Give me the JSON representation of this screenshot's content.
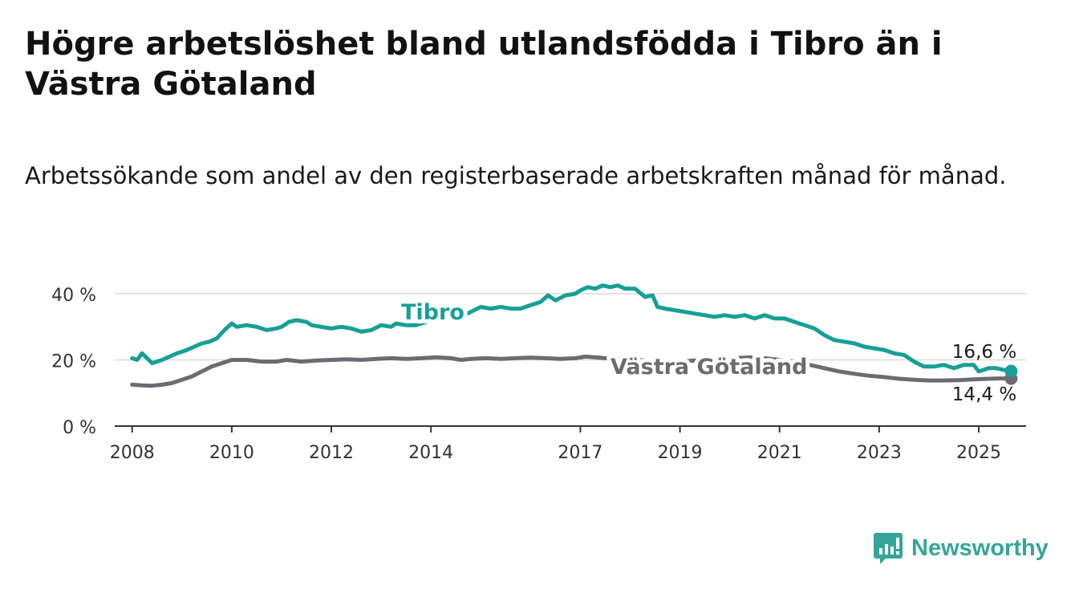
{
  "header": {
    "title": "Högre arbetslöshet bland utlandsfödda i Tibro än i Västra Götaland",
    "subtitle": "Arbetssökande som andel av den registerbaserade arbetskraften månad för månad."
  },
  "brand": {
    "name": "Newsworthy",
    "icon": "bar-chart-logo-icon",
    "color": "#35a59b"
  },
  "chart_data": {
    "type": "line",
    "title": "Högre arbetslöshet bland utlandsfödda i Tibro än i Västra Götaland",
    "subtitle": "Arbetssökande som andel av den registerbaserade arbetskraften månad för månad.",
    "xlabel": "",
    "ylabel": "",
    "xlim": [
      2007.65,
      2025.95
    ],
    "ylim": [
      0,
      40
    ],
    "grid": true,
    "legend": "inline labels",
    "x_ticks": [
      2008,
      2010,
      2012,
      2014,
      2017,
      2019,
      2021,
      2023,
      2025
    ],
    "x_tick_labels": [
      "2008",
      "2010",
      "2012",
      "2014",
      "2017",
      "2019",
      "2021",
      "2023",
      "2025"
    ],
    "y_ticks": [
      0,
      20,
      40
    ],
    "y_tick_labels": [
      "0 %",
      "20 %",
      "40 %"
    ],
    "series": [
      {
        "name": "Tibro",
        "color": "#17a095",
        "end_label": "16,6 %",
        "points": [
          [
            2008.0,
            20.5
          ],
          [
            2008.1,
            20.0
          ],
          [
            2008.2,
            22.0
          ],
          [
            2008.3,
            20.5
          ],
          [
            2008.4,
            19.0
          ],
          [
            2008.5,
            19.5
          ],
          [
            2008.6,
            20.0
          ],
          [
            2008.75,
            21.0
          ],
          [
            2008.9,
            22.0
          ],
          [
            2009.0,
            22.5
          ],
          [
            2009.1,
            23.0
          ],
          [
            2009.25,
            24.0
          ],
          [
            2009.4,
            25.0
          ],
          [
            2009.55,
            25.5
          ],
          [
            2009.7,
            26.5
          ],
          [
            2009.85,
            29.0
          ],
          [
            2010.0,
            31.0
          ],
          [
            2010.1,
            30.0
          ],
          [
            2010.3,
            30.5
          ],
          [
            2010.5,
            30.0
          ],
          [
            2010.7,
            29.0
          ],
          [
            2010.9,
            29.5
          ],
          [
            2011.0,
            30.0
          ],
          [
            2011.15,
            31.5
          ],
          [
            2011.3,
            32.0
          ],
          [
            2011.5,
            31.5
          ],
          [
            2011.6,
            30.5
          ],
          [
            2011.8,
            30.0
          ],
          [
            2012.0,
            29.5
          ],
          [
            2012.2,
            30.0
          ],
          [
            2012.4,
            29.5
          ],
          [
            2012.5,
            29.0
          ],
          [
            2012.6,
            28.5
          ],
          [
            2012.8,
            29.0
          ],
          [
            2013.0,
            30.5
          ],
          [
            2013.2,
            30.0
          ],
          [
            2013.3,
            31.0
          ],
          [
            2013.5,
            30.5
          ],
          [
            2013.7,
            30.5
          ],
          [
            2013.9,
            31.5
          ],
          [
            2014.0,
            32.0
          ],
          [
            2014.2,
            33.0
          ],
          [
            2014.4,
            33.5
          ],
          [
            2014.6,
            33.0
          ],
          [
            2014.8,
            34.5
          ],
          [
            2015.0,
            36.0
          ],
          [
            2015.2,
            35.5
          ],
          [
            2015.4,
            36.0
          ],
          [
            2015.6,
            35.5
          ],
          [
            2015.8,
            35.5
          ],
          [
            2016.0,
            36.5
          ],
          [
            2016.2,
            37.5
          ],
          [
            2016.35,
            39.5
          ],
          [
            2016.5,
            38.0
          ],
          [
            2016.7,
            39.5
          ],
          [
            2016.9,
            40.0
          ],
          [
            2017.0,
            41.0
          ],
          [
            2017.15,
            42.0
          ],
          [
            2017.3,
            41.5
          ],
          [
            2017.45,
            42.5
          ],
          [
            2017.6,
            42.0
          ],
          [
            2017.75,
            42.5
          ],
          [
            2017.9,
            41.5
          ],
          [
            2018.1,
            41.5
          ],
          [
            2018.3,
            39.0
          ],
          [
            2018.45,
            39.5
          ],
          [
            2018.55,
            36.0
          ],
          [
            2018.7,
            35.5
          ],
          [
            2018.9,
            35.0
          ],
          [
            2019.1,
            34.5
          ],
          [
            2019.3,
            34.0
          ],
          [
            2019.5,
            33.5
          ],
          [
            2019.7,
            33.0
          ],
          [
            2019.9,
            33.5
          ],
          [
            2020.1,
            33.0
          ],
          [
            2020.3,
            33.5
          ],
          [
            2020.5,
            32.5
          ],
          [
            2020.7,
            33.5
          ],
          [
            2020.9,
            32.5
          ],
          [
            2021.1,
            32.5
          ],
          [
            2021.3,
            31.5
          ],
          [
            2021.5,
            30.5
          ],
          [
            2021.7,
            29.5
          ],
          [
            2021.9,
            27.5
          ],
          [
            2022.1,
            26.0
          ],
          [
            2022.3,
            25.5
          ],
          [
            2022.5,
            25.0
          ],
          [
            2022.7,
            24.0
          ],
          [
            2022.9,
            23.5
          ],
          [
            2023.1,
            23.0
          ],
          [
            2023.3,
            22.0
          ],
          [
            2023.5,
            21.5
          ],
          [
            2023.7,
            19.5
          ],
          [
            2023.9,
            18.0
          ],
          [
            2024.1,
            18.0
          ],
          [
            2024.3,
            18.5
          ],
          [
            2024.5,
            17.5
          ],
          [
            2024.7,
            18.5
          ],
          [
            2024.9,
            18.5
          ],
          [
            2025.0,
            16.5
          ],
          [
            2025.1,
            17.0
          ],
          [
            2025.2,
            17.5
          ],
          [
            2025.35,
            17.5
          ],
          [
            2025.5,
            17.0
          ],
          [
            2025.65,
            16.6
          ]
        ]
      },
      {
        "name": "Västra Götaland",
        "color": "#6c6b73",
        "end_label": "14,4 %",
        "points": [
          [
            2008.0,
            12.5
          ],
          [
            2008.2,
            12.3
          ],
          [
            2008.4,
            12.2
          ],
          [
            2008.6,
            12.5
          ],
          [
            2008.8,
            13.0
          ],
          [
            2009.0,
            14.0
          ],
          [
            2009.2,
            15.0
          ],
          [
            2009.4,
            16.5
          ],
          [
            2009.6,
            18.0
          ],
          [
            2009.8,
            19.0
          ],
          [
            2010.0,
            20.0
          ],
          [
            2010.3,
            20.0
          ],
          [
            2010.6,
            19.5
          ],
          [
            2010.9,
            19.5
          ],
          [
            2011.1,
            20.0
          ],
          [
            2011.4,
            19.5
          ],
          [
            2011.7,
            19.8
          ],
          [
            2012.0,
            20.0
          ],
          [
            2012.3,
            20.2
          ],
          [
            2012.6,
            20.0
          ],
          [
            2012.9,
            20.3
          ],
          [
            2013.2,
            20.5
          ],
          [
            2013.5,
            20.3
          ],
          [
            2013.8,
            20.5
          ],
          [
            2014.1,
            20.8
          ],
          [
            2014.4,
            20.5
          ],
          [
            2014.6,
            20.0
          ],
          [
            2014.8,
            20.3
          ],
          [
            2015.1,
            20.5
          ],
          [
            2015.4,
            20.3
          ],
          [
            2015.7,
            20.5
          ],
          [
            2016.0,
            20.7
          ],
          [
            2016.3,
            20.5
          ],
          [
            2016.6,
            20.3
          ],
          [
            2016.9,
            20.5
          ],
          [
            2017.1,
            21.0
          ],
          [
            2017.3,
            20.8
          ],
          [
            2017.5,
            20.5
          ],
          [
            2017.8,
            20.3
          ],
          [
            2018.1,
            20.0
          ],
          [
            2018.4,
            19.8
          ],
          [
            2018.7,
            19.5
          ],
          [
            2019.0,
            19.5
          ],
          [
            2019.3,
            19.8
          ],
          [
            2019.6,
            20.0
          ],
          [
            2019.9,
            20.3
          ],
          [
            2020.1,
            20.5
          ],
          [
            2020.4,
            20.8
          ],
          [
            2020.7,
            20.5
          ],
          [
            2021.0,
            20.0
          ],
          [
            2021.3,
            19.5
          ],
          [
            2021.6,
            18.5
          ],
          [
            2021.9,
            17.5
          ],
          [
            2022.2,
            16.5
          ],
          [
            2022.5,
            15.8
          ],
          [
            2022.8,
            15.2
          ],
          [
            2023.1,
            14.8
          ],
          [
            2023.4,
            14.3
          ],
          [
            2023.7,
            14.0
          ],
          [
            2024.0,
            13.8
          ],
          [
            2024.3,
            13.8
          ],
          [
            2024.6,
            13.9
          ],
          [
            2024.9,
            14.1
          ],
          [
            2025.2,
            14.3
          ],
          [
            2025.4,
            14.4
          ],
          [
            2025.65,
            14.4
          ]
        ]
      }
    ]
  }
}
